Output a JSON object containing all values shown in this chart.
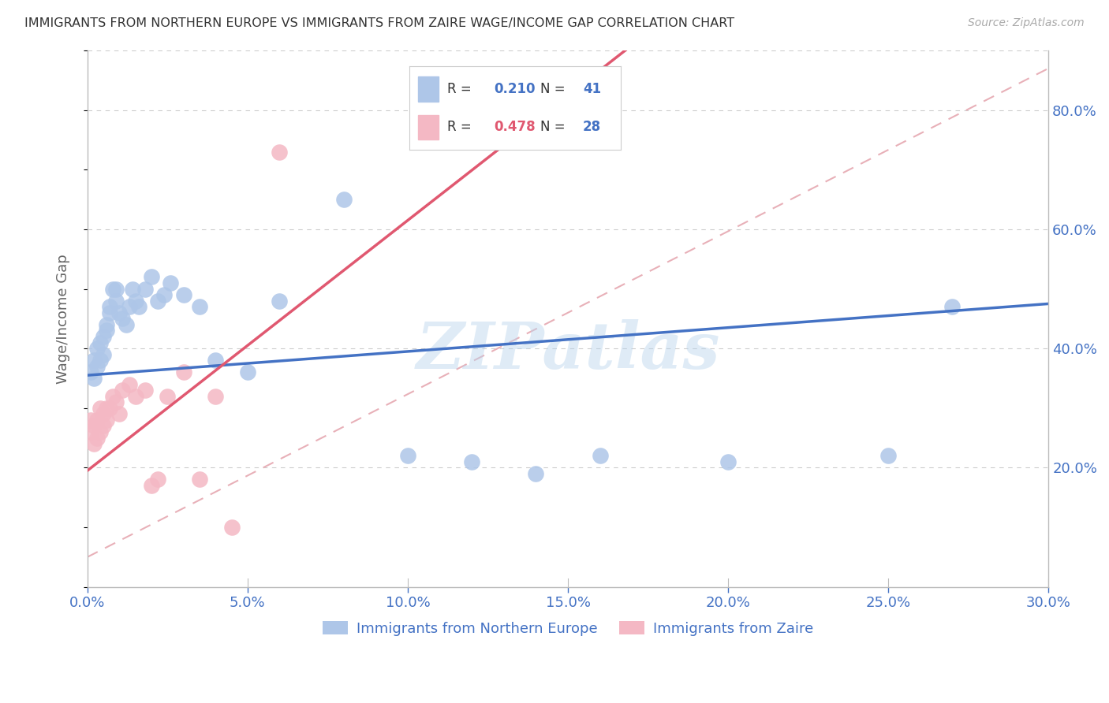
{
  "title": "IMMIGRANTS FROM NORTHERN EUROPE VS IMMIGRANTS FROM ZAIRE WAGE/INCOME GAP CORRELATION CHART",
  "source": "Source: ZipAtlas.com",
  "ylabel": "Wage/Income Gap",
  "xlim": [
    0.0,
    0.3
  ],
  "ylim": [
    0.0,
    0.9
  ],
  "y_ticks": [
    0.2,
    0.4,
    0.6,
    0.8
  ],
  "x_ticks": [
    0.0,
    0.05,
    0.1,
    0.15,
    0.2,
    0.25,
    0.3
  ],
  "blue_R": 0.21,
  "blue_N": 41,
  "pink_R": 0.478,
  "pink_N": 28,
  "title_color": "#333333",
  "axis_color": "#4472c4",
  "ylabel_color": "#666666",
  "grid_color": "#cccccc",
  "blue_color": "#aec6e8",
  "blue_line_color": "#4472c4",
  "pink_color": "#f4b8c4",
  "pink_line_color": "#e05870",
  "diag_line_color": "#e8b0b8",
  "legend_blue_label": "Immigrants from Northern Europe",
  "legend_pink_label": "Immigrants from Zaire",
  "watermark": "ZIPatlas",
  "blue_x": [
    0.001,
    0.002,
    0.002,
    0.003,
    0.003,
    0.004,
    0.004,
    0.005,
    0.005,
    0.006,
    0.006,
    0.007,
    0.007,
    0.008,
    0.009,
    0.009,
    0.01,
    0.011,
    0.012,
    0.013,
    0.014,
    0.015,
    0.016,
    0.018,
    0.02,
    0.022,
    0.024,
    0.026,
    0.03,
    0.035,
    0.04,
    0.05,
    0.06,
    0.08,
    0.1,
    0.12,
    0.14,
    0.16,
    0.2,
    0.25,
    0.27
  ],
  "blue_y": [
    0.36,
    0.38,
    0.35,
    0.4,
    0.37,
    0.41,
    0.38,
    0.42,
    0.39,
    0.43,
    0.44,
    0.46,
    0.47,
    0.5,
    0.5,
    0.48,
    0.46,
    0.45,
    0.44,
    0.47,
    0.5,
    0.48,
    0.47,
    0.5,
    0.52,
    0.48,
    0.49,
    0.51,
    0.49,
    0.47,
    0.38,
    0.36,
    0.48,
    0.65,
    0.22,
    0.21,
    0.19,
    0.22,
    0.21,
    0.22,
    0.47
  ],
  "pink_x": [
    0.001,
    0.001,
    0.002,
    0.002,
    0.003,
    0.003,
    0.004,
    0.004,
    0.005,
    0.005,
    0.006,
    0.006,
    0.007,
    0.008,
    0.009,
    0.01,
    0.011,
    0.013,
    0.015,
    0.018,
    0.02,
    0.022,
    0.025,
    0.03,
    0.035,
    0.04,
    0.045,
    0.06
  ],
  "pink_y": [
    0.26,
    0.28,
    0.24,
    0.27,
    0.25,
    0.28,
    0.26,
    0.3,
    0.27,
    0.29,
    0.28,
    0.3,
    0.3,
    0.32,
    0.31,
    0.29,
    0.33,
    0.34,
    0.32,
    0.33,
    0.17,
    0.18,
    0.32,
    0.36,
    0.18,
    0.32,
    0.1,
    0.73
  ]
}
